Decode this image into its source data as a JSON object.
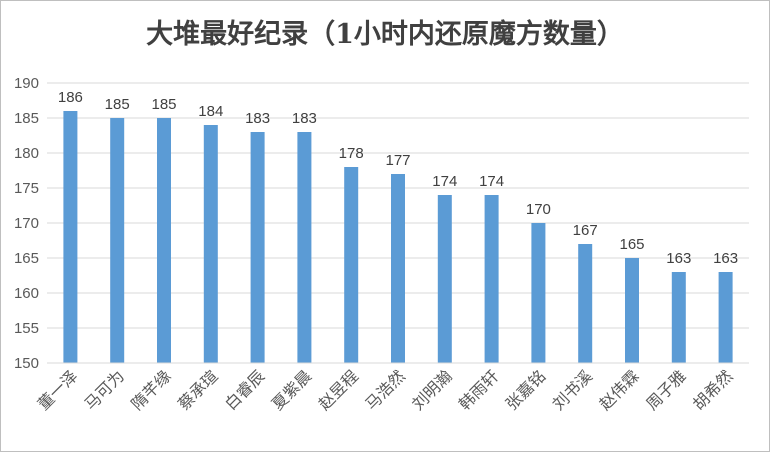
{
  "chart_data": {
    "type": "bar",
    "title": "大堆最好纪录（1小时内还原魔方数量）",
    "categories": [
      "董一泽",
      "马可为",
      "隋芊缘",
      "蔡承瑄",
      "白睿辰",
      "夏紫晨",
      "赵昱程",
      "马浩然",
      "刘明瀚",
      "韩雨轩",
      "张嘉铭",
      "刘书溪",
      "赵伟霖",
      "周子雅",
      "胡希然"
    ],
    "values": [
      186,
      185,
      185,
      184,
      183,
      183,
      178,
      177,
      174,
      174,
      170,
      167,
      165,
      163,
      163
    ],
    "ylim": [
      150,
      190
    ],
    "yticks": [
      150,
      155,
      160,
      165,
      170,
      175,
      180,
      185,
      190
    ],
    "xlabel": "",
    "ylabel": "",
    "grid": true,
    "legend": "none",
    "bar_color": "#5b9bd5",
    "grid_color": "#d9d9d9"
  }
}
